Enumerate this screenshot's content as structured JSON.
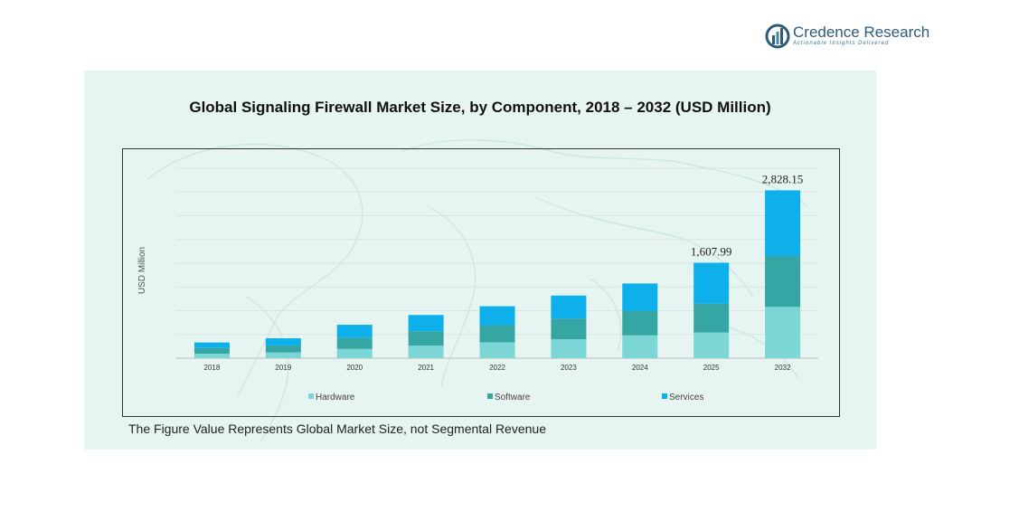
{
  "brand": {
    "name": "Credence Research",
    "tagline": "Actionable Insights Delivered",
    "icon": "bar-chart-circle-logo"
  },
  "footnote": "The Figure Value Represents Global Market Size, not Segmental Revenue",
  "colors": {
    "panel_bg": "#e6f4f2",
    "hardware": "#7dd6d6",
    "software": "#35a6a3",
    "services": "#0db0ea",
    "brand_text": "#2f5b7a"
  },
  "chart_data": {
    "type": "bar",
    "stacked": true,
    "title": "Global Signaling Firewall Market Size, by Component, 2018 – 2032 (USD Million)",
    "xlabel": "",
    "ylabel": "USD Million",
    "categories": [
      "2018",
      "2019",
      "2020",
      "2021",
      "2022",
      "2023",
      "2024",
      "2025",
      "2032"
    ],
    "series": [
      {
        "name": "Hardware",
        "color": "#7dd6d6",
        "values": [
          76,
          98,
          157,
          213,
          267,
          320,
          384,
          432,
          864
        ]
      },
      {
        "name": "Software",
        "color": "#35a6a3",
        "values": [
          96,
          117,
          188,
          240,
          289,
          347,
          415,
          488,
          857
        ]
      },
      {
        "name": "Services",
        "color": "#0db0ea",
        "values": [
          92,
          120,
          218,
          275,
          319,
          388,
          459,
          688,
          1107
        ]
      }
    ],
    "data_labels": [
      {
        "category": "2025",
        "text": "1,607.99"
      },
      {
        "category": "2032",
        "text": "2,828.15"
      }
    ],
    "ylim": [
      0,
      3200
    ],
    "grid": true,
    "legend": "bottom",
    "y_tick_labels_shown": false
  }
}
